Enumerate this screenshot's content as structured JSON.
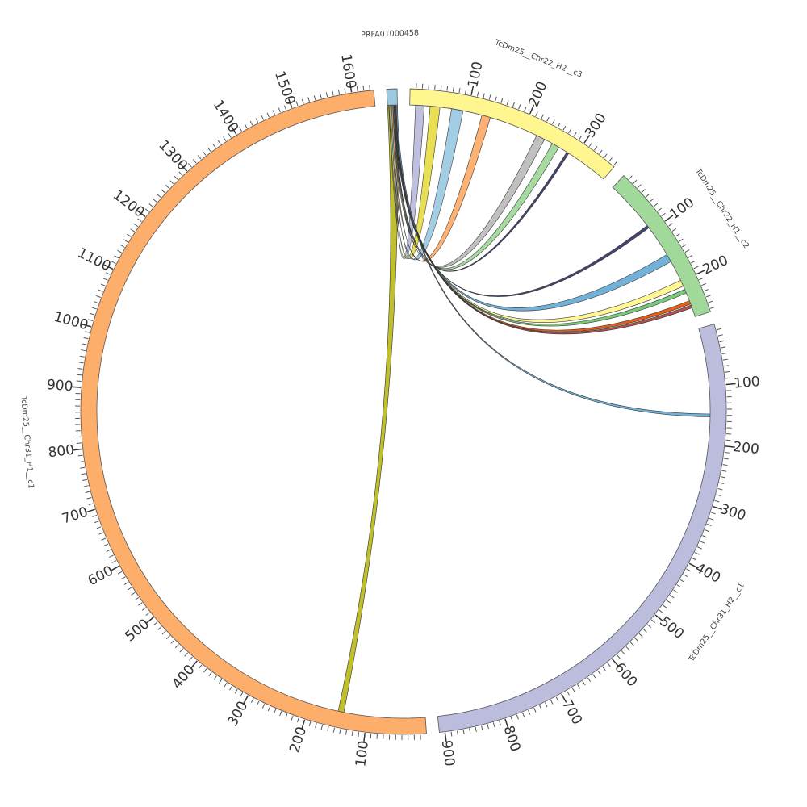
{
  "chart_data": {
    "type": "chord",
    "segments": [
      {
        "name": "PRFA01000458",
        "length": 17,
        "color": "#9ecae1",
        "ticks": []
      },
      {
        "name": "TcDm25__Chr22_H2__c3",
        "length": 362,
        "color": "#fff68f",
        "ticks": [
          100,
          200,
          300
        ]
      },
      {
        "name": "TcDm25__Chr22_H1__c2",
        "length": 265,
        "color": "#a1d99b",
        "ticks": [
          100,
          200
        ]
      },
      {
        "name": "TcDm25__Chr31_H2__c1",
        "length": 909,
        "color": "#bcbddc",
        "ticks": [
          100,
          200,
          300,
          400,
          500,
          600,
          700,
          800,
          900
        ]
      },
      {
        "name": "TcDm25__Chr31_H1__c1",
        "length": 1636,
        "color": "#fdae6b",
        "ticks": [
          100,
          200,
          300,
          400,
          500,
          600,
          700,
          800,
          900,
          1000,
          1100,
          1200,
          1300,
          1400,
          1500,
          1600
        ]
      }
    ],
    "links": [
      {
        "source": "PRFA01000458",
        "source_range": [
          0,
          17
        ],
        "target": "TcDm25__Chr31_H1__c1",
        "target_range": [
          140,
          150
        ],
        "color": "#bdbd22"
      },
      {
        "source": "PRFA01000458",
        "source_range": [
          2,
          5
        ],
        "target": "TcDm25__Chr22_H2__c3",
        "target_range": [
          10,
          25
        ],
        "color": "#bcbddc"
      },
      {
        "source": "PRFA01000458",
        "source_range": [
          3,
          6
        ],
        "target": "TcDm25__Chr22_H2__c3",
        "target_range": [
          35,
          52
        ],
        "color": "#e7dd4c"
      },
      {
        "source": "PRFA01000458",
        "source_range": [
          5,
          8
        ],
        "target": "TcDm25__Chr22_H2__c3",
        "target_range": [
          72,
          92
        ],
        "color": "#9ecae1"
      },
      {
        "source": "PRFA01000458",
        "source_range": [
          7,
          10
        ],
        "target": "TcDm25__Chr22_H2__c3",
        "target_range": [
          125,
          140
        ],
        "color": "#fdae6b"
      },
      {
        "source": "PRFA01000458",
        "source_range": [
          9,
          12
        ],
        "target": "TcDm25__Chr22_H2__c3",
        "target_range": [
          225,
          240
        ],
        "color": "#bdbdbd"
      },
      {
        "source": "PRFA01000458",
        "source_range": [
          10,
          13
        ],
        "target": "TcDm25__Chr22_H2__c3",
        "target_range": [
          255,
          268
        ],
        "color": "#a1d99b"
      },
      {
        "source": "PRFA01000458",
        "source_range": [
          11,
          12
        ],
        "target": "TcDm25__Chr22_H2__c3",
        "target_range": [
          284,
          288
        ],
        "color": "#3b3b6b"
      },
      {
        "source": "PRFA01000458",
        "source_range": [
          12,
          13
        ],
        "target": "TcDm25__Chr22_H1__c2",
        "target_range": [
          88,
          93
        ],
        "color": "#3b3b6b"
      },
      {
        "source": "PRFA01000458",
        "source_range": [
          12,
          16
        ],
        "target": "TcDm25__Chr22_H1__c2",
        "target_range": [
          148,
          162
        ],
        "color": "#6baed6"
      },
      {
        "source": "PRFA01000458",
        "source_range": [
          13,
          16
        ],
        "target": "TcDm25__Chr22_H1__c2",
        "target_range": [
          198,
          209
        ],
        "color": "#fff68f"
      },
      {
        "source": "PRFA01000458",
        "source_range": [
          13,
          15
        ],
        "target": "TcDm25__Chr22_H1__c2",
        "target_range": [
          215,
          222
        ],
        "color": "#74c476"
      },
      {
        "source": "PRFA01000458",
        "source_range": [
          14,
          16
        ],
        "target": "TcDm25__Chr22_H1__c2",
        "target_range": [
          236,
          242
        ],
        "color": "#e6550d"
      },
      {
        "source": "PRFA01000458",
        "source_range": [
          14,
          15
        ],
        "target": "TcDm25__Chr22_H1__c2",
        "target_range": [
          244,
          249
        ],
        "color": "#ad494a"
      },
      {
        "source": "PRFA01000458",
        "source_range": [
          15,
          17
        ],
        "target": "TcDm25__Chr31_H2__c1",
        "target_range": [
          148,
          153
        ],
        "color": "#6baed6"
      }
    ]
  }
}
